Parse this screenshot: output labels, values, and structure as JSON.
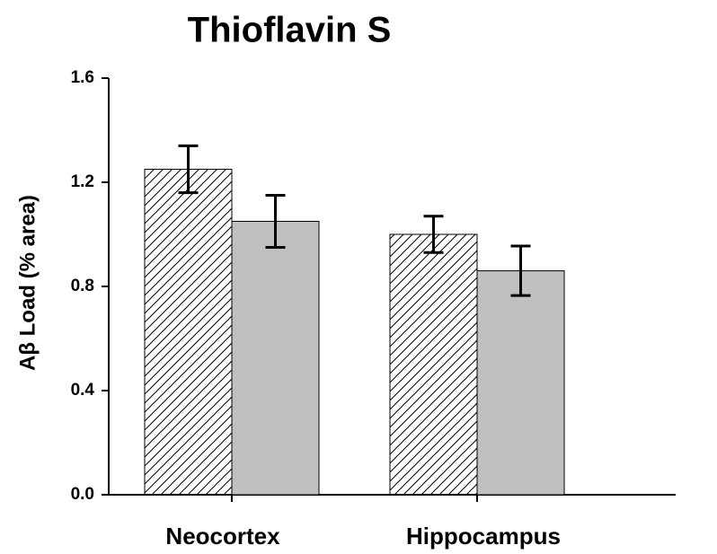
{
  "chart_data": {
    "type": "bar",
    "title": "Thioflavin S",
    "y_label": "Aβ Load (% area)",
    "categories": [
      "Neocortex",
      "Hippocampus"
    ],
    "series": [
      {
        "color": "#ffffff",
        "hatch": true,
        "values": [
          1.25,
          1.0
        ],
        "errors": [
          0.09,
          0.07
        ]
      },
      {
        "color": "#c0c0c0",
        "hatch": false,
        "values": [
          1.05,
          0.86
        ],
        "errors": [
          0.1,
          0.095
        ]
      }
    ],
    "ylim": [
      0,
      1.6
    ],
    "yticks": [
      {
        "value": 0,
        "label": "0.0"
      },
      0.4,
      0.8,
      1.2,
      1.6
    ]
  }
}
